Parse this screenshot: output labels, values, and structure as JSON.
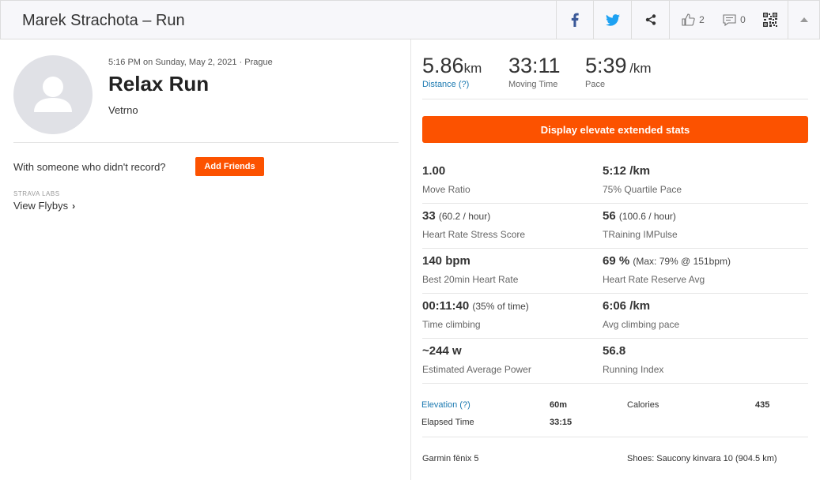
{
  "header": {
    "title": "Marek Strachota – Run",
    "kudos_count": "2",
    "comment_count": "0"
  },
  "activity": {
    "datetime": "5:16 PM on Sunday, May 2, 2021 · Prague",
    "name": "Relax Run",
    "description": "Vetrno"
  },
  "friends": {
    "prompt": "With someone who didn't record?",
    "button": "Add Friends"
  },
  "labs": {
    "label": "STRAVA LABS",
    "link": "View Flybys"
  },
  "primary_stats": [
    {
      "value": "5.86",
      "unit": "km",
      "label": "Distance (?)"
    },
    {
      "value": "33:11",
      "unit": "",
      "label": "Moving Time"
    },
    {
      "value": "5:39",
      "unit": "/km",
      "label": "Pace"
    }
  ],
  "elevate_button": "Display elevate extended stats",
  "extended_stats": [
    {
      "value": "1.00",
      "sub": "",
      "label": "Move Ratio"
    },
    {
      "value": "5:12 /km",
      "sub": "",
      "label": "75% Quartile Pace"
    },
    {
      "value": "33",
      "sub": "(60.2 / hour)",
      "label": "Heart Rate Stress Score"
    },
    {
      "value": "56",
      "sub": "(100.6 / hour)",
      "label": "TRaining IMPulse"
    },
    {
      "value": "140 bpm",
      "sub": "",
      "label": "Best 20min Heart Rate"
    },
    {
      "value": "69 %",
      "sub": "(Max: 79% @ 151bpm)",
      "label": "Heart Rate Reserve Avg"
    },
    {
      "value": "00:11:40",
      "sub": "(35% of time)",
      "label": "Time climbing"
    },
    {
      "value": "6:06 /km",
      "sub": "",
      "label": "Avg climbing pace"
    },
    {
      "value": "~244 w",
      "sub": "",
      "label": "Estimated Average Power"
    },
    {
      "value": "56.8",
      "sub": "",
      "label": "Running Index"
    }
  ],
  "more_stats": {
    "elevation_label": "Elevation (?)",
    "elevation_value": "60m",
    "calories_label": "Calories",
    "calories_value": "435",
    "elapsed_label": "Elapsed Time",
    "elapsed_value": "33:15"
  },
  "gear": {
    "device": "Garmin fēnix 5",
    "shoes": "Shoes: Saucony kinvara 10 (904.5 km)"
  },
  "colors": {
    "accent": "#fc5200",
    "link": "#1c7ab1",
    "facebook": "#3b5998",
    "twitter": "#1da1f2"
  },
  "icons": [
    "facebook-icon",
    "twitter-icon",
    "share-icon",
    "kudos-icon",
    "comment-icon",
    "qr-code-icon",
    "collapse-icon",
    "avatar-icon",
    "chevron-right-icon"
  ]
}
